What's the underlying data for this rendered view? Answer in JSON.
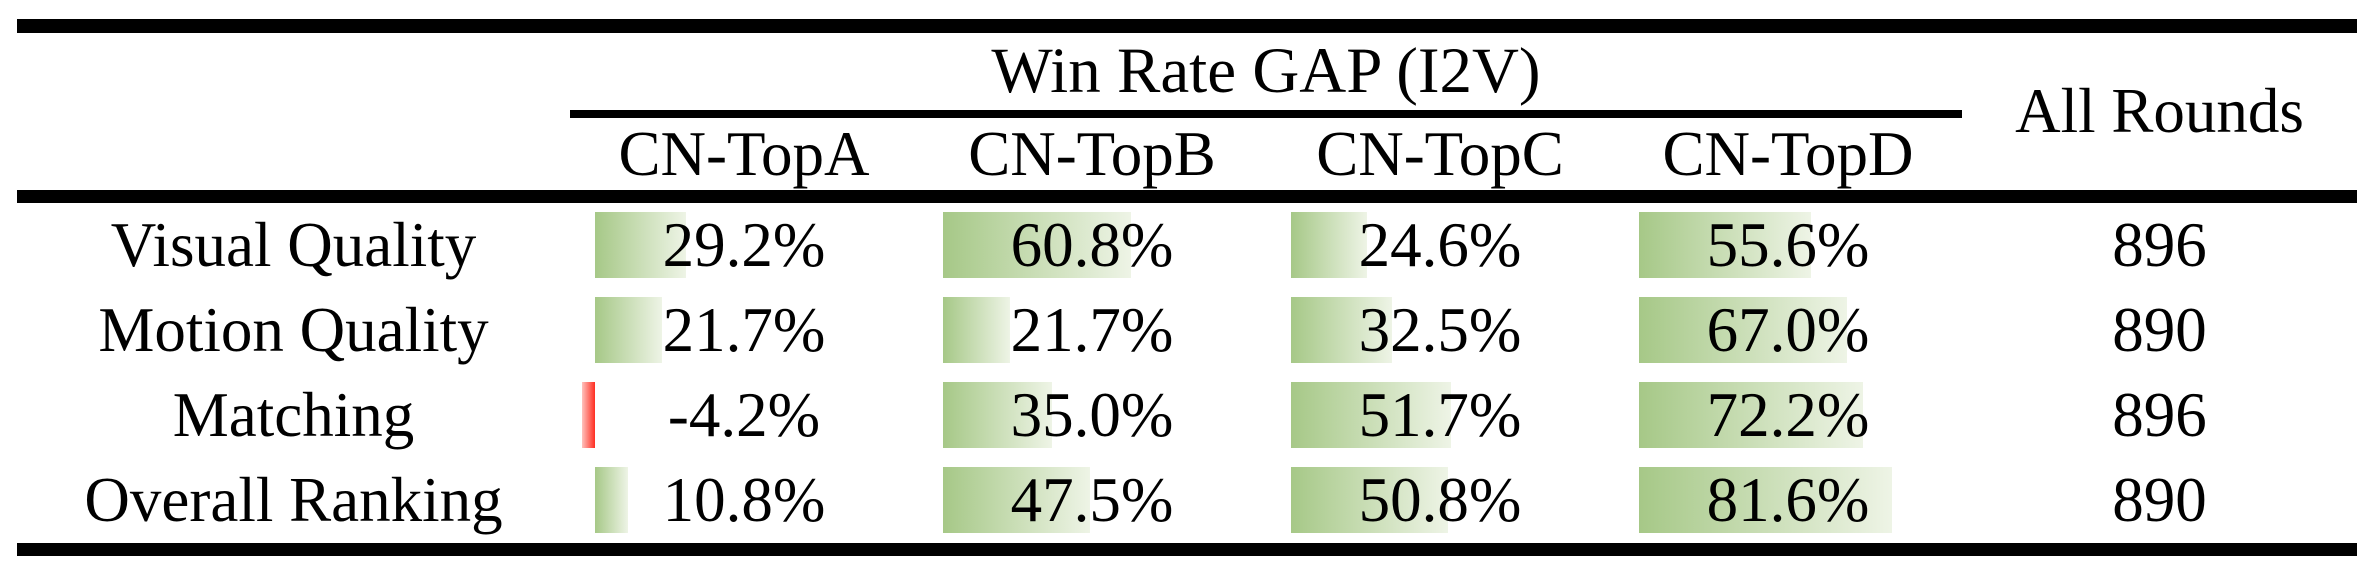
{
  "table": {
    "group_header": "Win Rate GAP (I2V)",
    "all_rounds_header": "All Rounds",
    "columns": [
      "CN-TopA",
      "CN-TopB",
      "CN-TopC",
      "CN-TopD"
    ],
    "rows": [
      {
        "label": "Visual Quality",
        "values": [
          29.2,
          60.8,
          24.6,
          55.6
        ],
        "display": [
          "29.2%",
          "60.8%",
          "24.6%",
          "55.6%"
        ],
        "all_rounds": "896"
      },
      {
        "label": "Motion Quality",
        "values": [
          21.7,
          21.7,
          32.5,
          67.0
        ],
        "display": [
          "21.7%",
          "21.7%",
          "32.5%",
          "67.0%"
        ],
        "all_rounds": "890"
      },
      {
        "label": "Matching",
        "values": [
          -4.2,
          35.0,
          51.7,
          72.2
        ],
        "display": [
          "-4.2%",
          "35.0%",
          "51.7%",
          "72.2%"
        ],
        "all_rounds": "896"
      },
      {
        "label": "Overall Ranking",
        "values": [
          10.8,
          47.5,
          50.8,
          81.6
        ],
        "display": [
          "10.8%",
          "47.5%",
          "50.8%",
          "81.6%"
        ],
        "all_rounds": "890"
      }
    ],
    "bar_colors": {
      "positive_start": "#a6c887",
      "positive_end": "#eef4e6",
      "negative_start": "#ffc2bd",
      "negative_end": "#ff2d21"
    }
  },
  "chart_data": {
    "type": "table",
    "title": "Win Rate GAP (I2V)",
    "columns": [
      "CN-TopA",
      "CN-TopB",
      "CN-TopC",
      "CN-TopD",
      "All Rounds"
    ],
    "row_labels": [
      "Visual Quality",
      "Motion Quality",
      "Matching",
      "Overall Ranking"
    ],
    "series": [
      {
        "name": "CN-TopA",
        "values": [
          29.2,
          21.7,
          -4.2,
          10.8
        ]
      },
      {
        "name": "CN-TopB",
        "values": [
          60.8,
          21.7,
          35.0,
          47.5
        ]
      },
      {
        "name": "CN-TopC",
        "values": [
          24.6,
          32.5,
          51.7,
          50.8
        ]
      },
      {
        "name": "CN-TopD",
        "values": [
          55.6,
          67.0,
          72.2,
          81.6
        ]
      }
    ],
    "all_rounds": [
      896,
      890,
      896,
      890
    ],
    "value_unit": "%",
    "bar_axis_range": [
      0,
      100
    ],
    "notes": "in-cell data bars, green gradient for positive, red for negative"
  }
}
